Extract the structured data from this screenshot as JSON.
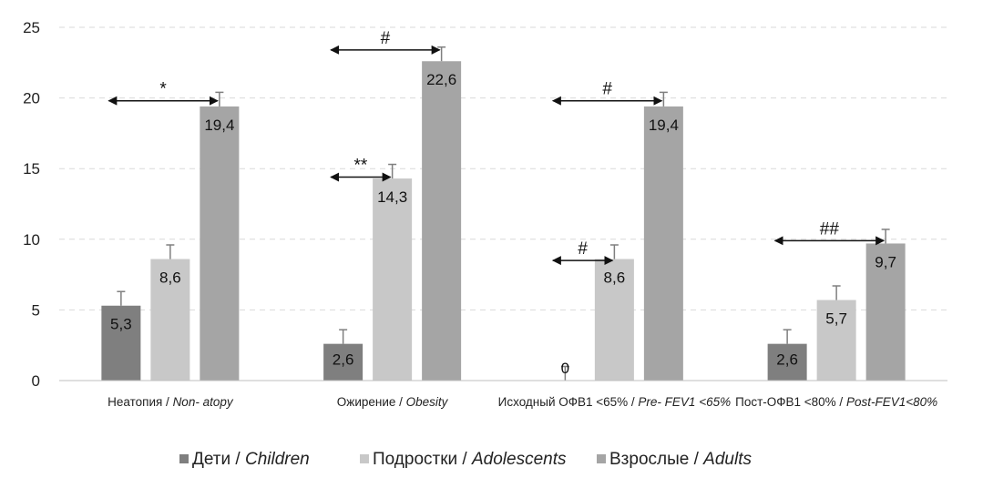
{
  "chart_data": {
    "type": "bar",
    "title": "",
    "xlabel": "",
    "ylabel": "",
    "ylim": [
      0,
      25
    ],
    "yticks": [
      0,
      5,
      10,
      15,
      20,
      25
    ],
    "grid": true,
    "legend_position": "bottom",
    "categories": [
      {
        "ru": "Неатопия / ",
        "en": "Non- atopy"
      },
      {
        "ru": "Ожирение / ",
        "en": "Obesity"
      },
      {
        "ru": "Исходный ОФВ1 <65% / ",
        "en": "Pre- FEV1 <65%"
      },
      {
        "ru": "Пост-ОФВ1 <80% / ",
        "en": "Post-FEV1<80%"
      }
    ],
    "series": [
      {
        "name_ru": "Дети / ",
        "name_en": "Children",
        "color": "#7f7f7f",
        "values": [
          5.3,
          2.6,
          0,
          2.6
        ],
        "labels": [
          "5,3",
          "2,6",
          "0",
          "2,6"
        ],
        "errors": [
          1,
          1,
          1,
          1
        ]
      },
      {
        "name_ru": "Подростки / ",
        "name_en": "Adolescents",
        "color": "#c8c8c8",
        "values": [
          8.6,
          14.3,
          8.6,
          5.7
        ],
        "labels": [
          "8,6",
          "14,3",
          "8,6",
          "5,7"
        ],
        "errors": [
          1,
          1,
          1,
          1
        ]
      },
      {
        "name_ru": "Взрослые / ",
        "name_en": "Adults",
        "color": "#a5a5a5",
        "values": [
          19.4,
          22.6,
          19.4,
          9.7
        ],
        "labels": [
          "19,4",
          "22,6",
          "19,4",
          "9,7"
        ],
        "errors": [
          1,
          1,
          1,
          1
        ]
      }
    ],
    "annotations": [
      {
        "category": 0,
        "from_series": 0,
        "to_series": 2,
        "level": 19.8,
        "text": "*"
      },
      {
        "category": 1,
        "from_series": 0,
        "to_series": 2,
        "level": 23.4,
        "text": "#"
      },
      {
        "category": 1,
        "from_series": 0,
        "to_series": 1,
        "level": 14.4,
        "text": "**"
      },
      {
        "category": 2,
        "from_series": 0,
        "to_series": 2,
        "level": 19.8,
        "text": "#"
      },
      {
        "category": 2,
        "from_series": 0,
        "to_series": 1,
        "level": 8.5,
        "text": "#"
      },
      {
        "category": 3,
        "from_series": 0,
        "to_series": 2,
        "level": 9.9,
        "text": "##"
      }
    ]
  }
}
